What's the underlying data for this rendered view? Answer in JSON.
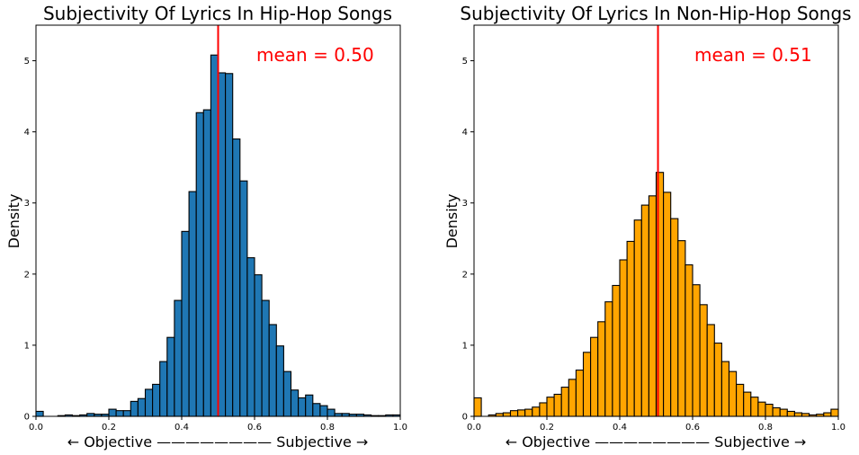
{
  "chart_data": [
    {
      "type": "histogram",
      "title": "Subjectivity Of Lyrics In Hip-Hop Songs",
      "xlabel": "← Objective ———————— Subjective →",
      "ylabel": "Density",
      "xlim": [
        0.0,
        1.0
      ],
      "ylim": [
        0,
        5.5
      ],
      "xticks": [
        "0.0",
        "0.2",
        "0.4",
        "0.6",
        "0.8",
        "1.0"
      ],
      "yticks": [
        "0",
        "1",
        "2",
        "3",
        "4",
        "5"
      ],
      "bin_width": 0.02,
      "bin_start": 0.0,
      "bar_color": "#1f77b4",
      "edge_color": "#000000",
      "values": [
        0.07,
        0.0,
        0.0,
        0.01,
        0.02,
        0.01,
        0.02,
        0.04,
        0.03,
        0.03,
        0.1,
        0.08,
        0.08,
        0.21,
        0.25,
        0.38,
        0.45,
        0.77,
        1.11,
        1.63,
        2.6,
        3.16,
        4.27,
        4.31,
        5.08,
        4.83,
        4.82,
        3.9,
        3.31,
        2.23,
        1.99,
        1.63,
        1.29,
        0.99,
        0.63,
        0.37,
        0.26,
        0.3,
        0.18,
        0.15,
        0.1,
        0.04,
        0.04,
        0.03,
        0.03,
        0.02,
        0.01,
        0.01,
        0.02,
        0.02
      ],
      "mean": 0.5,
      "mean_label": "mean = 0.50",
      "mean_color": "#ff0000"
    },
    {
      "type": "histogram",
      "title": "Subjectivity Of Lyrics In Non-Hip-Hop Songs",
      "xlabel": "← Objective ———————— Subjective →",
      "ylabel": "Density",
      "xlim": [
        0.0,
        1.0
      ],
      "ylim": [
        0,
        5.5
      ],
      "xticks": [
        "0.0",
        "0.2",
        "0.4",
        "0.6",
        "0.8",
        "1.0"
      ],
      "yticks": [
        "0",
        "1",
        "2",
        "3",
        "4",
        "5"
      ],
      "bin_width": 0.02,
      "bin_start": 0.0,
      "bar_color": "#ffa500",
      "edge_color": "#000000",
      "values": [
        0.26,
        0.0,
        0.02,
        0.04,
        0.05,
        0.08,
        0.09,
        0.1,
        0.13,
        0.19,
        0.27,
        0.31,
        0.41,
        0.52,
        0.65,
        0.9,
        1.11,
        1.33,
        1.61,
        1.84,
        2.2,
        2.46,
        2.76,
        2.97,
        3.1,
        3.43,
        3.15,
        2.78,
        2.47,
        2.13,
        1.85,
        1.57,
        1.29,
        1.03,
        0.77,
        0.63,
        0.45,
        0.34,
        0.27,
        0.2,
        0.17,
        0.12,
        0.1,
        0.07,
        0.05,
        0.04,
        0.02,
        0.03,
        0.05,
        0.1
      ],
      "mean": 0.505,
      "mean_label": "mean = 0.51",
      "mean_color": "#ff0000"
    }
  ]
}
